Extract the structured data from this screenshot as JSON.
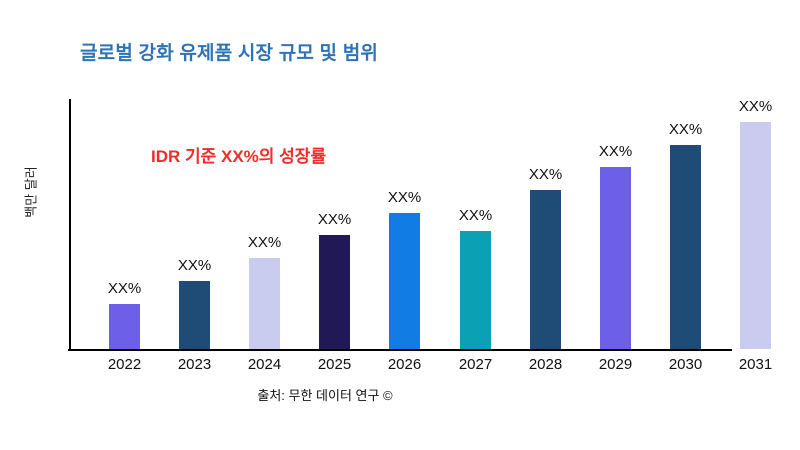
{
  "colors": {
    "title_blue": "#2E74B5",
    "annotation_red": "#F42A2A",
    "axis_black": "#000000",
    "purple": "#6D5FE8",
    "dark_steel_blue": "#1F4C77",
    "lavender": "#C9CCEE",
    "dark_navy": "#211956",
    "bright_blue": "#117CE4",
    "teal": "#0AA1B4"
  },
  "chart_data": {
    "type": "bar",
    "title": "글로벌 강화 유제품 시장 규모 및 범위",
    "ylabel": "백만 달러",
    "xlabel": "",
    "annotation": "IDR 기준 XX%의 성장률",
    "source": "출처: 무한 데이터 연구 ©",
    "categories": [
      "2022",
      "2023",
      "2024",
      "2025",
      "2026",
      "2027",
      "2028",
      "2029",
      "2030",
      "2031"
    ],
    "values": [
      20,
      30,
      40,
      50,
      60,
      52,
      70,
      80,
      90,
      100
    ],
    "bar_labels": [
      "XX%",
      "XX%",
      "XX%",
      "XX%",
      "XX%",
      "XX%",
      "XX%",
      "XX%",
      "XX%",
      "XX%"
    ],
    "bar_colors": [
      "#6D5FE8",
      "#1F4C77",
      "#C9CCEE",
      "#211956",
      "#117CE4",
      "#0AA1B4",
      "#1F4C77",
      "#6D5FE8",
      "#1F4C77",
      "#C9CCEE"
    ],
    "ylim": [
      0,
      110
    ],
    "grid": "off",
    "legend": "none"
  }
}
